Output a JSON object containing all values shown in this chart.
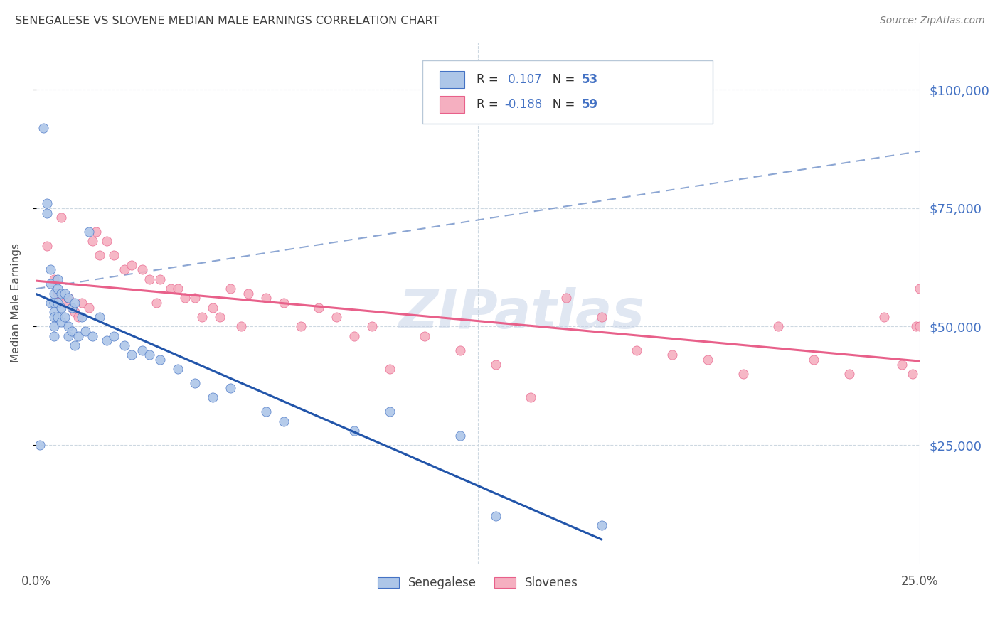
{
  "title": "SENEGALESE VS SLOVENE MEDIAN MALE EARNINGS CORRELATION CHART",
  "source": "Source: ZipAtlas.com",
  "ylabel": "Median Male Earnings",
  "ytick_labels": [
    "$25,000",
    "$50,000",
    "$75,000",
    "$100,000"
  ],
  "ytick_values": [
    25000,
    50000,
    75000,
    100000
  ],
  "xlim": [
    0.0,
    0.25
  ],
  "ylim": [
    0,
    110000
  ],
  "r_senegalese": 0.107,
  "n_senegalese": 53,
  "r_slovene": -0.188,
  "n_slovene": 59,
  "senegalese_fill_color": "#adc6e8",
  "slovene_fill_color": "#f5afc0",
  "senegalese_edge_color": "#4472c4",
  "slovene_edge_color": "#e8608a",
  "senegalese_line_color": "#2255aa",
  "slovene_line_color": "#e8608a",
  "dashed_line_color": "#7090c8",
  "watermark_color": "#c8d4e8",
  "background_color": "#ffffff",
  "grid_color": "#c8d4de",
  "title_color": "#404040",
  "right_label_color": "#4472c4",
  "senegalese_scatter_x": [
    0.001,
    0.002,
    0.003,
    0.003,
    0.004,
    0.004,
    0.004,
    0.005,
    0.005,
    0.005,
    0.005,
    0.005,
    0.005,
    0.006,
    0.006,
    0.006,
    0.006,
    0.007,
    0.007,
    0.007,
    0.008,
    0.008,
    0.009,
    0.009,
    0.009,
    0.01,
    0.01,
    0.011,
    0.011,
    0.012,
    0.013,
    0.014,
    0.015,
    0.016,
    0.018,
    0.02,
    0.022,
    0.025,
    0.027,
    0.03,
    0.032,
    0.035,
    0.04,
    0.045,
    0.05,
    0.055,
    0.065,
    0.07,
    0.09,
    0.1,
    0.12,
    0.13,
    0.16
  ],
  "senegalese_scatter_y": [
    25000,
    92000,
    76000,
    74000,
    62000,
    59000,
    55000,
    57000,
    55000,
    53000,
    52000,
    50000,
    48000,
    60000,
    58000,
    55000,
    52000,
    57000,
    54000,
    51000,
    57000,
    52000,
    56000,
    50000,
    48000,
    54000,
    49000,
    55000,
    46000,
    48000,
    52000,
    49000,
    70000,
    48000,
    52000,
    47000,
    48000,
    46000,
    44000,
    45000,
    44000,
    43000,
    41000,
    38000,
    35000,
    37000,
    32000,
    30000,
    28000,
    32000,
    27000,
    10000,
    8000
  ],
  "slovene_scatter_x": [
    0.003,
    0.005,
    0.006,
    0.007,
    0.008,
    0.009,
    0.01,
    0.011,
    0.012,
    0.013,
    0.015,
    0.016,
    0.017,
    0.018,
    0.02,
    0.022,
    0.025,
    0.027,
    0.03,
    0.032,
    0.034,
    0.035,
    0.038,
    0.04,
    0.042,
    0.045,
    0.047,
    0.05,
    0.052,
    0.055,
    0.058,
    0.06,
    0.065,
    0.07,
    0.075,
    0.08,
    0.085,
    0.09,
    0.095,
    0.1,
    0.11,
    0.12,
    0.13,
    0.14,
    0.15,
    0.16,
    0.17,
    0.18,
    0.19,
    0.2,
    0.21,
    0.22,
    0.23,
    0.24,
    0.245,
    0.248,
    0.249,
    0.25,
    0.25
  ],
  "slovene_scatter_y": [
    67000,
    60000,
    57000,
    73000,
    55000,
    56000,
    54000,
    53000,
    52000,
    55000,
    54000,
    68000,
    70000,
    65000,
    68000,
    65000,
    62000,
    63000,
    62000,
    60000,
    55000,
    60000,
    58000,
    58000,
    56000,
    56000,
    52000,
    54000,
    52000,
    58000,
    50000,
    57000,
    56000,
    55000,
    50000,
    54000,
    52000,
    48000,
    50000,
    41000,
    48000,
    45000,
    42000,
    35000,
    56000,
    52000,
    45000,
    44000,
    43000,
    40000,
    50000,
    43000,
    40000,
    52000,
    42000,
    40000,
    50000,
    58000,
    50000
  ],
  "dashed_line_x": [
    0.0,
    0.25
  ],
  "dashed_line_y": [
    58000,
    87000
  ]
}
